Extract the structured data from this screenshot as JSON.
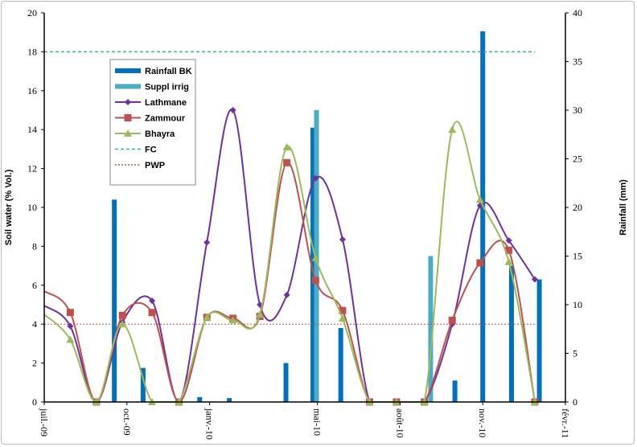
{
  "chart_data": {
    "type": "line",
    "title": "",
    "xlabel": "",
    "ylabel": "Soil water (% Vol.)",
    "y2label": "Rainfall (mm)",
    "xrange": [
      "2009-07-01",
      "2011-02-01"
    ],
    "ylim": [
      0,
      20
    ],
    "y2lim": [
      0,
      40
    ],
    "yticks": [
      "0",
      "2",
      "4",
      "6",
      "8",
      "10",
      "12",
      "14",
      "16",
      "18",
      "20"
    ],
    "y2ticks": [
      "0",
      "5",
      "10",
      "15",
      "20",
      "25",
      "30",
      "35",
      "40"
    ],
    "xticks": [
      {
        "date": "2009-07-01",
        "label": "juil.-09"
      },
      {
        "date": "2009-10-01",
        "label": "oct.-09"
      },
      {
        "date": "2010-01-01",
        "label": "janv.-10"
      },
      {
        "date": "2010-05-01",
        "label": "mai-10"
      },
      {
        "date": "2010-08-01",
        "label": "août-10"
      },
      {
        "date": "2010-11-01",
        "label": "nov.-10"
      },
      {
        "date": "2011-02-01",
        "label": "févr.-11"
      }
    ],
    "grid": false,
    "legend_position": "top-left",
    "x": [
      "2009-07-01",
      "2009-07-30",
      "2009-08-28",
      "2009-09-26",
      "2009-10-29",
      "2009-11-28",
      "2009-12-29",
      "2010-01-27",
      "2010-02-26",
      "2010-03-28",
      "2010-04-29",
      "2010-05-29",
      "2010-06-28",
      "2010-07-28",
      "2010-08-28",
      "2010-09-28",
      "2010-10-29",
      "2010-11-30",
      "2010-12-29"
    ],
    "series": [
      {
        "name": "Lathmane",
        "color": "#7030a0",
        "marker": "diamond",
        "values": [
          4.95,
          3.9,
          0,
          4.1,
          5.2,
          0,
          8.2,
          15.0,
          5.0,
          5.5,
          11.5,
          8.35,
          0,
          0,
          0,
          4.0,
          10.1,
          8.3,
          6.3
        ]
      },
      {
        "name": "Zammour",
        "color": "#c0504d",
        "marker": "square",
        "values": [
          5.7,
          4.6,
          0,
          4.45,
          4.6,
          0,
          4.35,
          4.3,
          4.4,
          12.3,
          6.25,
          4.7,
          0,
          0,
          0,
          4.2,
          7.15,
          7.8,
          0
        ]
      },
      {
        "name": "Bhayra",
        "color": "#9bbb59",
        "marker": "triangle",
        "values": [
          4.5,
          3.2,
          0,
          4.0,
          0,
          0,
          4.35,
          4.2,
          4.5,
          13.1,
          7.4,
          4.3,
          0,
          0,
          0,
          14.0,
          10.4,
          7.2,
          0
        ]
      }
    ],
    "bars": [
      {
        "name": "Rainfall BK",
        "color": "#0070c0",
        "axis": "right",
        "points": [
          {
            "date": "2009-09-17",
            "value": 20.8
          },
          {
            "date": "2009-10-19",
            "value": 3.5
          },
          {
            "date": "2009-12-21",
            "value": 0.5
          },
          {
            "date": "2010-01-23",
            "value": 0.4
          },
          {
            "date": "2010-03-27",
            "value": 4.0
          },
          {
            "date": "2010-04-26",
            "value": 28.2
          },
          {
            "date": "2010-05-27",
            "value": 7.6
          },
          {
            "date": "2010-10-01",
            "value": 2.2
          },
          {
            "date": "2010-11-01",
            "value": 38.1
          },
          {
            "date": "2010-12-03",
            "value": 14.0
          },
          {
            "date": "2011-01-03",
            "value": 12.6
          }
        ]
      },
      {
        "name": "Suppl irrig",
        "color": "#4bacc6",
        "axis": "right",
        "points": [
          {
            "date": "2010-04-30",
            "value": 30.0
          },
          {
            "date": "2010-09-04",
            "value": 15.0
          }
        ]
      }
    ],
    "reference_lines": [
      {
        "name": "FC",
        "value": 18,
        "color": "#2bb39b",
        "style": "dashed"
      },
      {
        "name": "PWP",
        "value": 4,
        "color": "#c0504d",
        "style": "dotted"
      }
    ]
  }
}
